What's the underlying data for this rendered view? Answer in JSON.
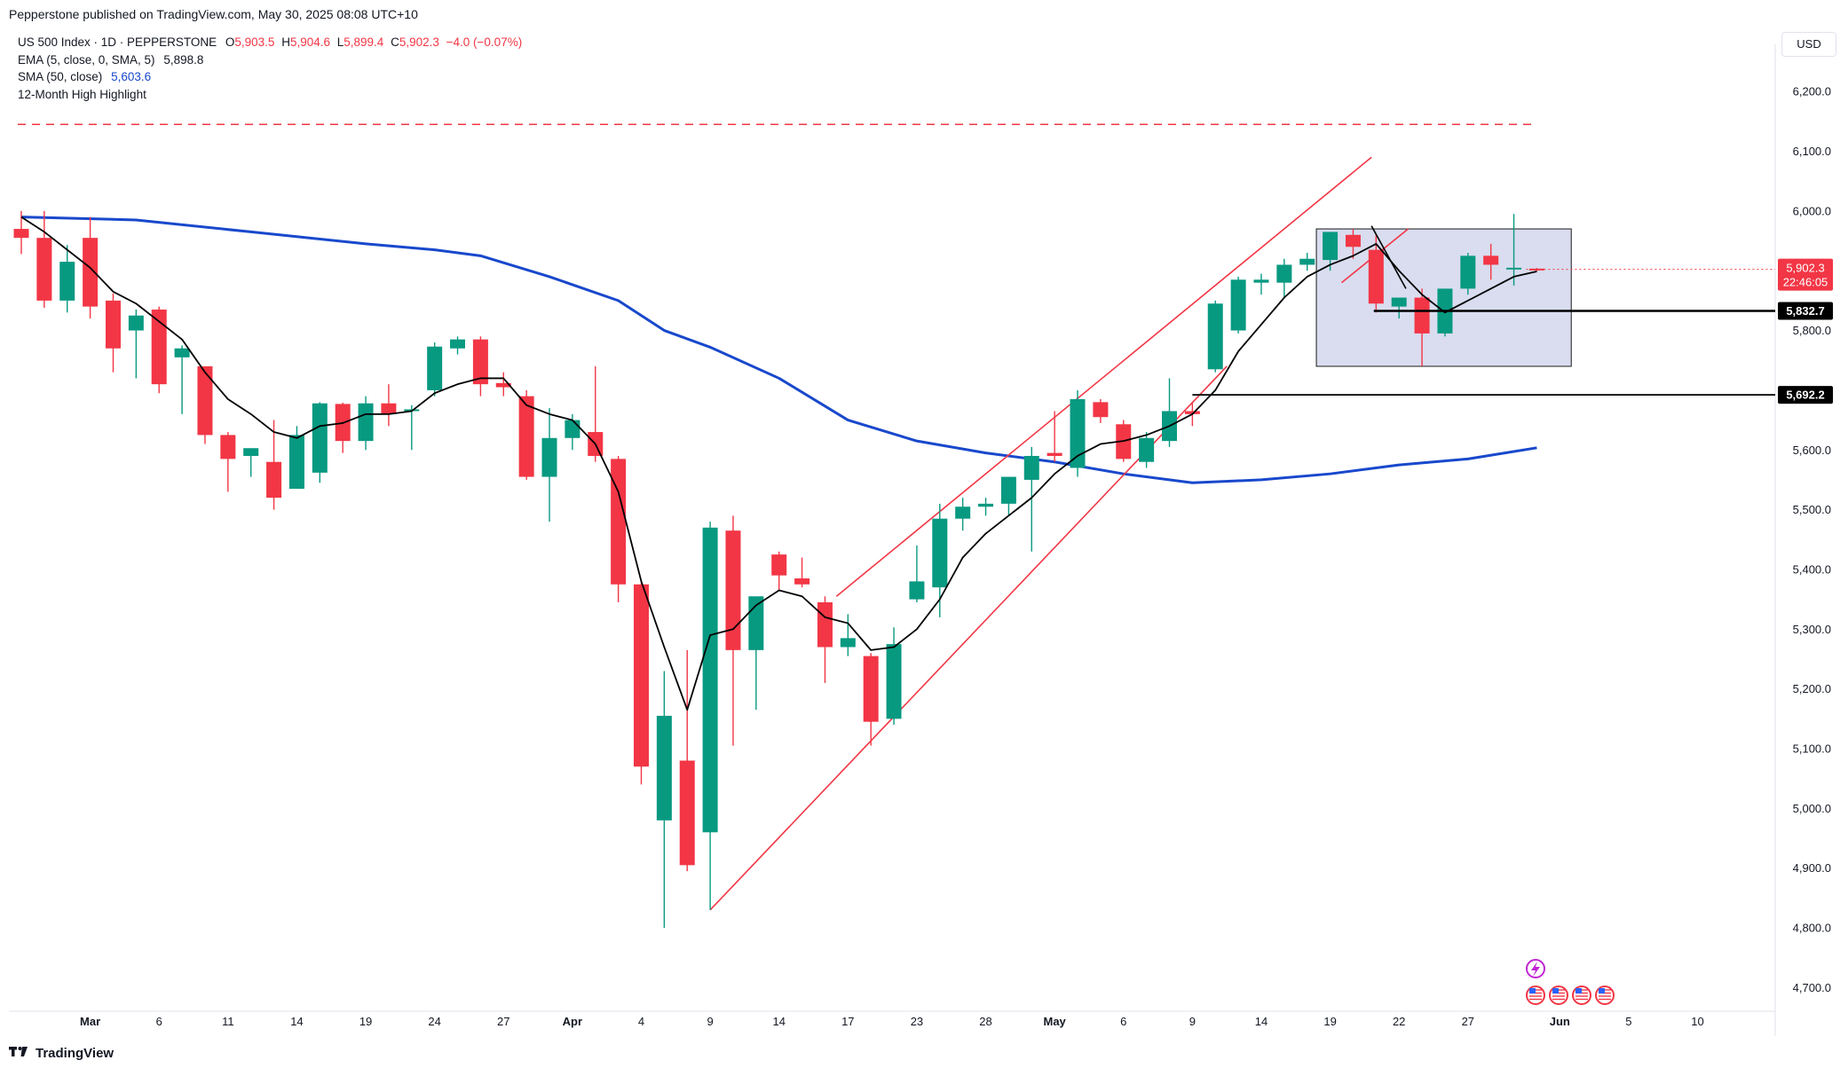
{
  "header": {
    "published": "Pepperstone published on TradingView.com, May 30, 2025 08:08 UTC+10"
  },
  "legend": {
    "symbol": "US 500 Index · 1D · PEPPERSTONE",
    "o_label": "O",
    "o": "5,903.5",
    "h_label": "H",
    "h": "5,904.6",
    "l_label": "L",
    "l": "5,899.4",
    "c_label": "C",
    "c": "5,902.3",
    "change": "−4.0 (−0.07%)",
    "ema_label": "EMA (5, close, 0, SMA, 5)",
    "ema_value": "5,898.8",
    "sma_label": "SMA (50, close)",
    "sma_value": "5,603.6",
    "highlight_label": "12-Month High Highlight"
  },
  "currency_button": "USD",
  "footer": {
    "brand": "TradingView",
    "logo_icon": "tradingview-logo-icon"
  },
  "colors": {
    "up": "#089981",
    "down": "#f23645",
    "sma": "#1848cc",
    "ema": "#000000",
    "channel": "#f23645",
    "box_fill": "#c5cbe6",
    "box_stroke": "#1a1a1a"
  },
  "chart_data": {
    "type": "candlestick",
    "y_range": [
      4650,
      6270
    ],
    "y_ticks": [
      {
        "v": 4700,
        "label": "4,700.0"
      },
      {
        "v": 4800,
        "label": "4,800.0"
      },
      {
        "v": 4900,
        "label": "4,900.0"
      },
      {
        "v": 5000,
        "label": "5,000.0"
      },
      {
        "v": 5100,
        "label": "5,100.0"
      },
      {
        "v": 5200,
        "label": "5,200.0"
      },
      {
        "v": 5300,
        "label": "5,300.0"
      },
      {
        "v": 5400,
        "label": "5,400.0"
      },
      {
        "v": 5500,
        "label": "5,500.0"
      },
      {
        "v": 5600,
        "label": "5,600.0"
      },
      {
        "v": 5800,
        "label": "5,800.0"
      },
      {
        "v": 6000,
        "label": "6,000.0"
      },
      {
        "v": 6100,
        "label": "6,100.0"
      },
      {
        "v": 6200,
        "label": "6,200.0"
      }
    ],
    "x_ticks": [
      {
        "i": 3,
        "label": "Mar",
        "bold": true
      },
      {
        "i": 6,
        "label": "6"
      },
      {
        "i": 9,
        "label": "11"
      },
      {
        "i": 12,
        "label": "14"
      },
      {
        "i": 15,
        "label": "19"
      },
      {
        "i": 18,
        "label": "24"
      },
      {
        "i": 21,
        "label": "27"
      },
      {
        "i": 24,
        "label": "Apr",
        "bold": true
      },
      {
        "i": 27,
        "label": "4"
      },
      {
        "i": 30,
        "label": "9"
      },
      {
        "i": 33,
        "label": "14"
      },
      {
        "i": 36,
        "label": "17"
      },
      {
        "i": 39,
        "label": "23"
      },
      {
        "i": 42,
        "label": "28"
      },
      {
        "i": 45,
        "label": "May",
        "bold": true
      },
      {
        "i": 48,
        "label": "6"
      },
      {
        "i": 51,
        "label": "9"
      },
      {
        "i": 54,
        "label": "14"
      },
      {
        "i": 57,
        "label": "19"
      },
      {
        "i": 60,
        "label": "22"
      },
      {
        "i": 63,
        "label": "27"
      },
      {
        "i": 67,
        "label": "Jun",
        "bold": true
      },
      {
        "i": 70,
        "label": "5"
      },
      {
        "i": 73,
        "label": "10"
      }
    ],
    "candles": [
      [
        5970,
        6000,
        5928,
        5955
      ],
      [
        5955,
        6000,
        5838,
        5850
      ],
      [
        5850,
        5943,
        5830,
        5915
      ],
      [
        5955,
        5990,
        5820,
        5840
      ],
      [
        5850,
        5862,
        5730,
        5770
      ],
      [
        5800,
        5835,
        5720,
        5825
      ],
      [
        5835,
        5840,
        5695,
        5710
      ],
      [
        5755,
        5775,
        5660,
        5770
      ],
      [
        5740,
        5740,
        5610,
        5625
      ],
      [
        5625,
        5630,
        5530,
        5585
      ],
      [
        5590,
        5600,
        5555,
        5603
      ],
      [
        5580,
        5650,
        5500,
        5520
      ],
      [
        5535,
        5640,
        5535,
        5625
      ],
      [
        5562,
        5680,
        5545,
        5678
      ],
      [
        5677,
        5679,
        5595,
        5615
      ],
      [
        5615,
        5690,
        5600,
        5678
      ],
      [
        5678,
        5710,
        5640,
        5660
      ],
      [
        5665,
        5675,
        5600,
        5668
      ],
      [
        5700,
        5780,
        5690,
        5773
      ],
      [
        5770,
        5790,
        5760,
        5785
      ],
      [
        5785,
        5790,
        5690,
        5710
      ],
      [
        5712,
        5730,
        5690,
        5705
      ],
      [
        5690,
        5700,
        5550,
        5555
      ],
      [
        5555,
        5670,
        5480,
        5620
      ],
      [
        5620,
        5660,
        5600,
        5650
      ],
      [
        5630,
        5740,
        5580,
        5590
      ],
      [
        5585,
        5590,
        5345,
        5375
      ],
      [
        5375,
        5380,
        5040,
        5070
      ],
      [
        4980,
        5230,
        4800,
        5155
      ],
      [
        5080,
        5265,
        4895,
        4905
      ],
      [
        4960,
        5480,
        4830,
        5470
      ],
      [
        5465,
        5490,
        5105,
        5265
      ],
      [
        5265,
        5340,
        5165,
        5355
      ],
      [
        5425,
        5430,
        5365,
        5390
      ],
      [
        5385,
        5420,
        5370,
        5375
      ],
      [
        5345,
        5355,
        5210,
        5270
      ],
      [
        5270,
        5325,
        5255,
        5285
      ],
      [
        5255,
        5260,
        5105,
        5145
      ],
      [
        5150,
        5303,
        5140,
        5275
      ],
      [
        5350,
        5440,
        5345,
        5380
      ],
      [
        5370,
        5510,
        5320,
        5485
      ],
      [
        5485,
        5520,
        5465,
        5505
      ],
      [
        5505,
        5520,
        5490,
        5510
      ],
      [
        5510,
        5545,
        5490,
        5555
      ],
      [
        5550,
        5605,
        5430,
        5590
      ],
      [
        5595,
        5665,
        5580,
        5590
      ],
      [
        5570,
        5700,
        5555,
        5685
      ],
      [
        5680,
        5685,
        5645,
        5655
      ],
      [
        5643,
        5650,
        5580,
        5585
      ],
      [
        5580,
        5630,
        5570,
        5620
      ],
      [
        5615,
        5720,
        5605,
        5665
      ],
      [
        5665,
        5680,
        5640,
        5660
      ],
      [
        5735,
        5850,
        5730,
        5845
      ],
      [
        5800,
        5890,
        5795,
        5885
      ],
      [
        5880,
        5895,
        5860,
        5885
      ],
      [
        5880,
        5920,
        5855,
        5910
      ],
      [
        5910,
        5930,
        5900,
        5920
      ],
      [
        5918,
        5960,
        5900,
        5965
      ],
      [
        5960,
        5970,
        5920,
        5940
      ],
      [
        5935,
        5960,
        5830,
        5845
      ],
      [
        5840,
        5855,
        5820,
        5855
      ],
      [
        5855,
        5870,
        5740,
        5795
      ],
      [
        5795,
        5860,
        5790,
        5870
      ],
      [
        5870,
        5930,
        5860,
        5925
      ],
      [
        5925,
        5945,
        5885,
        5910
      ],
      [
        5905,
        5995,
        5875,
        5905
      ],
      [
        5903.5,
        5904.6,
        5899.4,
        5902.3
      ]
    ],
    "ema5": [
      5990,
      5965,
      5935,
      5905,
      5865,
      5845,
      5815,
      5785,
      5730,
      5685,
      5660,
      5630,
      5620,
      5640,
      5645,
      5660,
      5660,
      5665,
      5695,
      5710,
      5720,
      5720,
      5675,
      5660,
      5650,
      5610,
      5530,
      5380,
      5270,
      5165,
      5290,
      5300,
      5340,
      5365,
      5355,
      5320,
      5310,
      5265,
      5270,
      5300,
      5350,
      5420,
      5460,
      5490,
      5520,
      5560,
      5590,
      5610,
      5615,
      5625,
      5640,
      5660,
      5700,
      5765,
      5810,
      5855,
      5890,
      5910,
      5925,
      5945,
      5900,
      5860,
      5830,
      5850,
      5870,
      5890,
      5898.8
    ],
    "sma50": [
      [
        0,
        5990
      ],
      [
        5,
        5985
      ],
      [
        10,
        5965
      ],
      [
        15,
        5945
      ],
      [
        18,
        5935
      ],
      [
        20,
        5925
      ],
      [
        23,
        5890
      ],
      [
        26,
        5850
      ],
      [
        28,
        5800
      ],
      [
        30,
        5772
      ],
      [
        33,
        5720
      ],
      [
        36,
        5650
      ],
      [
        39,
        5615
      ],
      [
        42,
        5595
      ],
      [
        45,
        5580
      ],
      [
        48,
        5560
      ],
      [
        51,
        5545
      ],
      [
        54,
        5550
      ],
      [
        57,
        5560
      ],
      [
        60,
        5575
      ],
      [
        63,
        5585
      ],
      [
        66,
        5603.6
      ]
    ],
    "resistance_12m_high": 6145,
    "support_lines": [
      {
        "y": 5832.7,
        "from_i": 58.9,
        "label": "5,832.7"
      },
      {
        "y": 5692.2,
        "from_i": 51.0,
        "label": "5,692.2"
      }
    ],
    "current_price": {
      "value": 5902.3,
      "label": "5,902.3",
      "countdown": "22:46:05"
    },
    "channel": {
      "lower": [
        [
          30,
          4830
        ],
        [
          52.5,
          5740
        ]
      ],
      "upper": [
        [
          35.5,
          5355
        ],
        [
          58.8,
          6090
        ]
      ],
      "inner": [
        [
          57.5,
          5880
        ],
        [
          60.4,
          5970
        ]
      ]
    },
    "ema_box_line": [
      [
        58.8,
        5975
      ],
      [
        60.3,
        5870
      ]
    ],
    "range_box": {
      "i1": 56.4,
      "i2": 67.5,
      "y1": 5740,
      "y2": 5970
    }
  }
}
